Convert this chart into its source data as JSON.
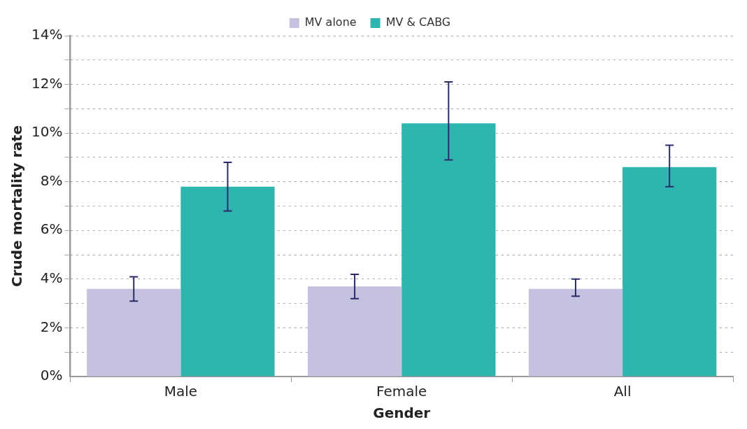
{
  "chart_data": {
    "type": "bar",
    "xlabel": "Gender",
    "ylabel": "Crude mortality rate",
    "categories": [
      "Male",
      "Female",
      "All"
    ],
    "series": [
      {
        "name": "MV alone",
        "color": "#c5c2e0",
        "values": [
          3.6,
          3.7,
          3.6
        ],
        "errors": [
          [
            3.1,
            4.1
          ],
          [
            3.2,
            4.2
          ],
          [
            3.3,
            4.0
          ]
        ]
      },
      {
        "name": "MV & CABG",
        "color": "#2fb5b0",
        "values": [
          7.8,
          10.4,
          8.6
        ],
        "errors": [
          [
            6.8,
            8.8
          ],
          [
            8.9,
            12.1
          ],
          [
            7.8,
            9.5
          ]
        ]
      }
    ],
    "ylim": [
      0,
      14
    ],
    "yticks": [
      {
        "value": 0,
        "label": "0%"
      },
      {
        "value": 1,
        "label": null
      },
      {
        "value": 2,
        "label": "2%"
      },
      {
        "value": 3,
        "label": null
      },
      {
        "value": 4,
        "label": "4%"
      },
      {
        "value": 5,
        "label": null
      },
      {
        "value": 6,
        "label": "6%"
      },
      {
        "value": 7,
        "label": null
      },
      {
        "value": 8,
        "label": "8%"
      },
      {
        "value": 9,
        "label": null
      },
      {
        "value": 10,
        "label": "10%"
      },
      {
        "value": 11,
        "label": null
      },
      {
        "value": 12,
        "label": "12%"
      },
      {
        "value": 13,
        "label": null
      },
      {
        "value": 14,
        "label": "14%"
      }
    ],
    "grid": "y",
    "legend": "top"
  }
}
